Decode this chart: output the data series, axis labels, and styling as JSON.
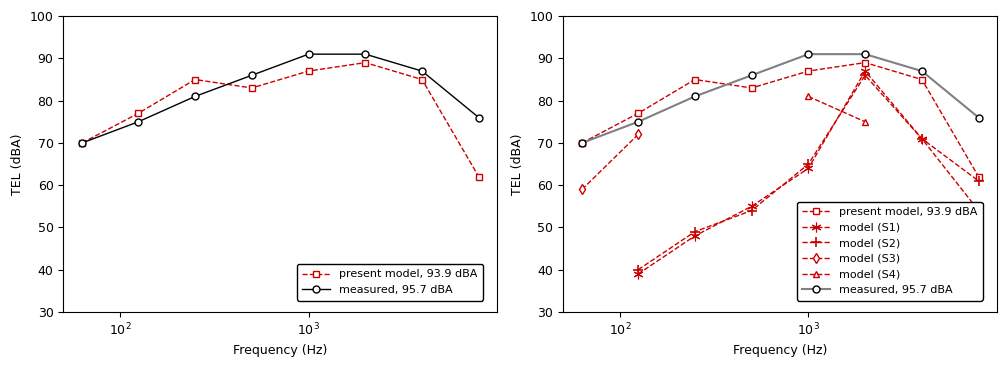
{
  "freq": [
    63,
    125,
    250,
    500,
    1000,
    2000,
    4000,
    8000
  ],
  "present_model": [
    70,
    77,
    85,
    83,
    87,
    89,
    85,
    62
  ],
  "measured": [
    70,
    75,
    81,
    86,
    91,
    91,
    87,
    76
  ],
  "s1_freq": [
    125,
    250,
    500,
    1000,
    2000,
    4000,
    8000
  ],
  "s1_vals": [
    39,
    48,
    55,
    64,
    87,
    71,
    54
  ],
  "s2_freq": [
    125,
    250,
    500,
    1000,
    2000,
    4000,
    8000
  ],
  "s2_vals": [
    40,
    49,
    54,
    65,
    86,
    71,
    61
  ],
  "s3_freq": [
    63,
    125
  ],
  "s3_vals": [
    59,
    72
  ],
  "s4_freq": [
    1000,
    2000
  ],
  "s4_vals": [
    81,
    75
  ],
  "ylabel": "TEL (dBA)",
  "xlabel": "Frequency (Hz)",
  "ylim": [
    30,
    100
  ],
  "yticks": [
    30,
    40,
    50,
    60,
    70,
    80,
    90,
    100
  ],
  "xticks": [
    100,
    1000
  ],
  "xlim": [
    50,
    10000
  ],
  "legend_present": "present model, 93.9 dBA",
  "legend_measured": "measured, 95.7 dBA",
  "legend_s1": "model (S1)",
  "legend_s2": "model (S2)",
  "legend_s3": "model (S3)",
  "legend_s4": "model (S4)",
  "color_red": "#cc0000",
  "color_black": "#000000",
  "color_gray": "#808080"
}
